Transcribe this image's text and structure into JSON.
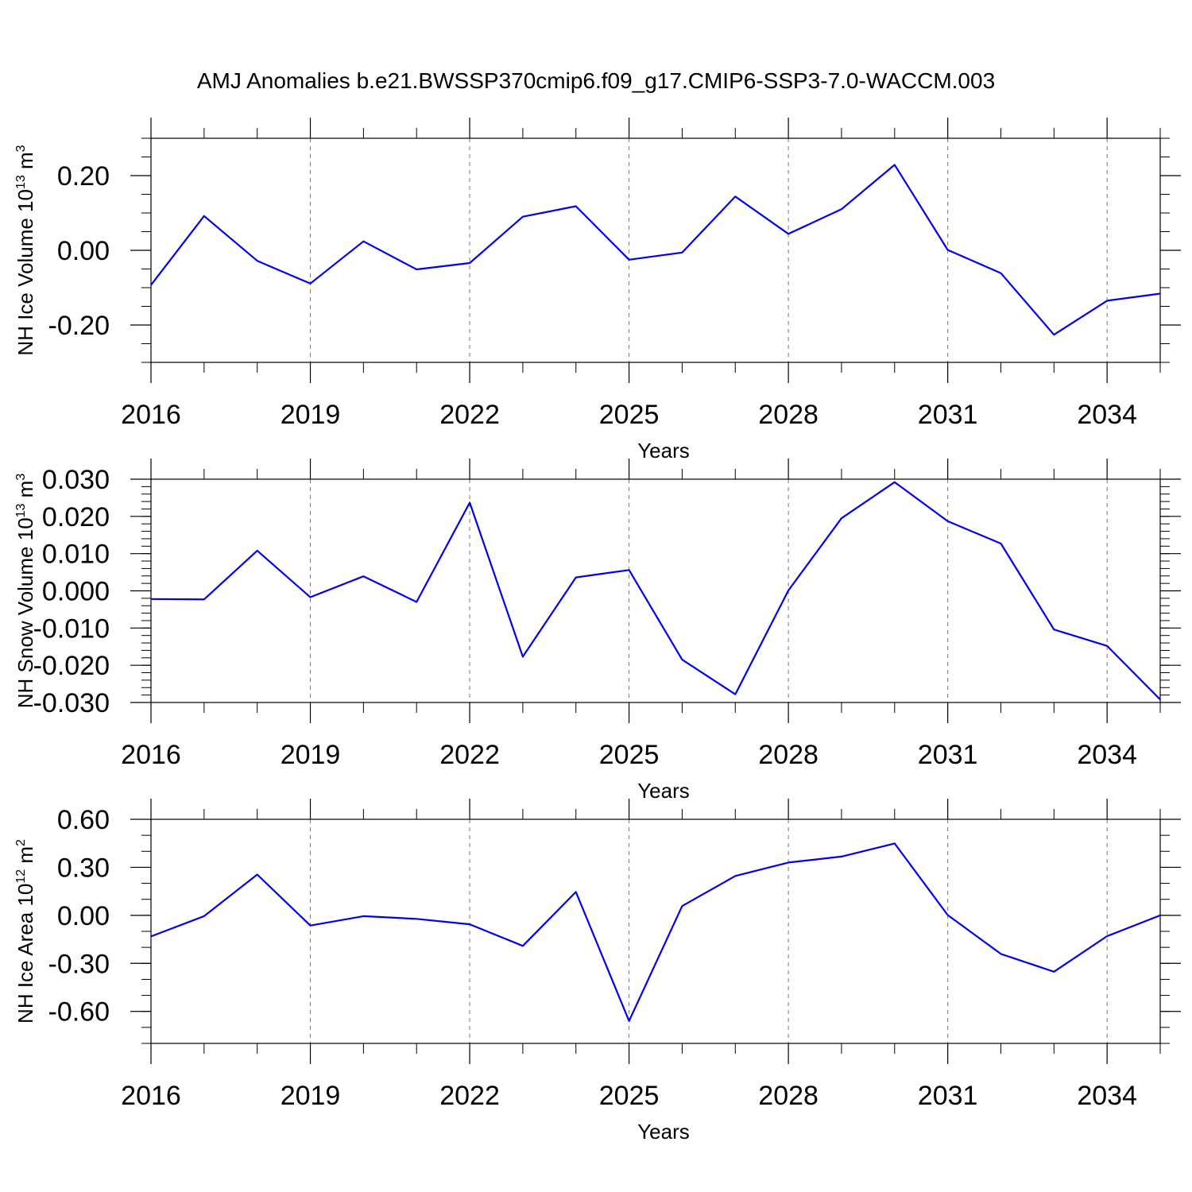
{
  "chart_data": {
    "title": "AMJ Anomalies b.e21.BWSSP370cmip6.f09_g17.CMIP6-SSP3-7.0-WACCM.003",
    "line_color": "#0000ee",
    "panels": [
      {
        "type": "line",
        "ylabel_main": "NH Ice Volume 10",
        "ylabel_exp": "13",
        "ylabel_unit": " m",
        "ylabel_unit_exp": "3",
        "xlabel": "Years",
        "xlim": [
          2016,
          2035
        ],
        "ylim": [
          -0.3,
          0.3
        ],
        "yticks": [
          -0.2,
          0.0,
          0.2
        ],
        "ytick_labels": [
          "-0.20",
          "0.00",
          "0.20"
        ],
        "yminor_step": 0.05,
        "x": [
          2016,
          2017,
          2018,
          2019,
          2020,
          2021,
          2022,
          2023,
          2024,
          2025,
          2026,
          2027,
          2028,
          2029,
          2030,
          2031,
          2032,
          2033,
          2034,
          2035
        ],
        "values": [
          -0.093,
          0.092,
          -0.028,
          -0.089,
          0.024,
          -0.051,
          -0.034,
          0.09,
          0.118,
          -0.025,
          -0.006,
          0.144,
          0.044,
          0.11,
          0.229,
          0.001,
          -0.061,
          -0.226,
          -0.135,
          -0.116
        ]
      },
      {
        "type": "line",
        "ylabel_main": "NH Snow Volume 10",
        "ylabel_exp": "13",
        "ylabel_unit": " m",
        "ylabel_unit_exp": "3",
        "xlabel": "Years",
        "xlim": [
          2016,
          2035
        ],
        "ylim": [
          -0.03,
          0.03
        ],
        "yticks": [
          -0.03,
          -0.02,
          -0.01,
          0.0,
          0.01,
          0.02,
          0.03
        ],
        "ytick_labels": [
          "-0.030",
          "-0.020",
          "-0.010",
          "0.000",
          "0.010",
          "0.020",
          "0.030"
        ],
        "yminor_step": 0.002,
        "x": [
          2016,
          2017,
          2018,
          2019,
          2020,
          2021,
          2022,
          2023,
          2024,
          2025,
          2026,
          2027,
          2028,
          2029,
          2030,
          2031,
          2032,
          2033,
          2034,
          2035
        ],
        "values": [
          -0.0022,
          -0.0023,
          0.0108,
          -0.0017,
          0.0039,
          -0.003,
          0.0237,
          -0.0177,
          0.0036,
          0.0056,
          -0.0185,
          -0.0278,
          0.0001,
          0.0195,
          0.0292,
          0.0187,
          0.0127,
          -0.0104,
          -0.0148,
          -0.0292
        ]
      },
      {
        "type": "line",
        "ylabel_main": "NH Ice Area 10",
        "ylabel_exp": "12",
        "ylabel_unit": " m",
        "ylabel_unit_exp": "2",
        "xlabel": "Years",
        "xlim": [
          2016,
          2035
        ],
        "ylim": [
          -0.8,
          0.6
        ],
        "yticks": [
          -0.6,
          -0.3,
          0.0,
          0.3,
          0.6
        ],
        "ytick_labels": [
          "-0.60",
          "-0.30",
          "0.00",
          "0.30",
          "0.60"
        ],
        "yminor_step": 0.1,
        "x": [
          2016,
          2017,
          2018,
          2019,
          2020,
          2021,
          2022,
          2023,
          2024,
          2025,
          2026,
          2027,
          2028,
          2029,
          2030,
          2031,
          2032,
          2033,
          2034,
          2035
        ],
        "values": [
          -0.132,
          -0.005,
          0.255,
          -0.064,
          -0.005,
          -0.022,
          -0.056,
          -0.191,
          0.146,
          -0.66,
          0.058,
          0.246,
          0.33,
          0.367,
          0.449,
          0.002,
          -0.241,
          -0.352,
          -0.13,
          0.0
        ]
      }
    ],
    "xticks": [
      2016,
      2019,
      2022,
      2025,
      2028,
      2031,
      2034
    ],
    "xtick_labels": [
      "2016",
      "2019",
      "2022",
      "2025",
      "2028",
      "2031",
      "2034"
    ],
    "x_minor_ticks": [
      2017,
      2018,
      2020,
      2021,
      2023,
      2024,
      2026,
      2027,
      2029,
      2030,
      2032,
      2033,
      2035
    ]
  }
}
